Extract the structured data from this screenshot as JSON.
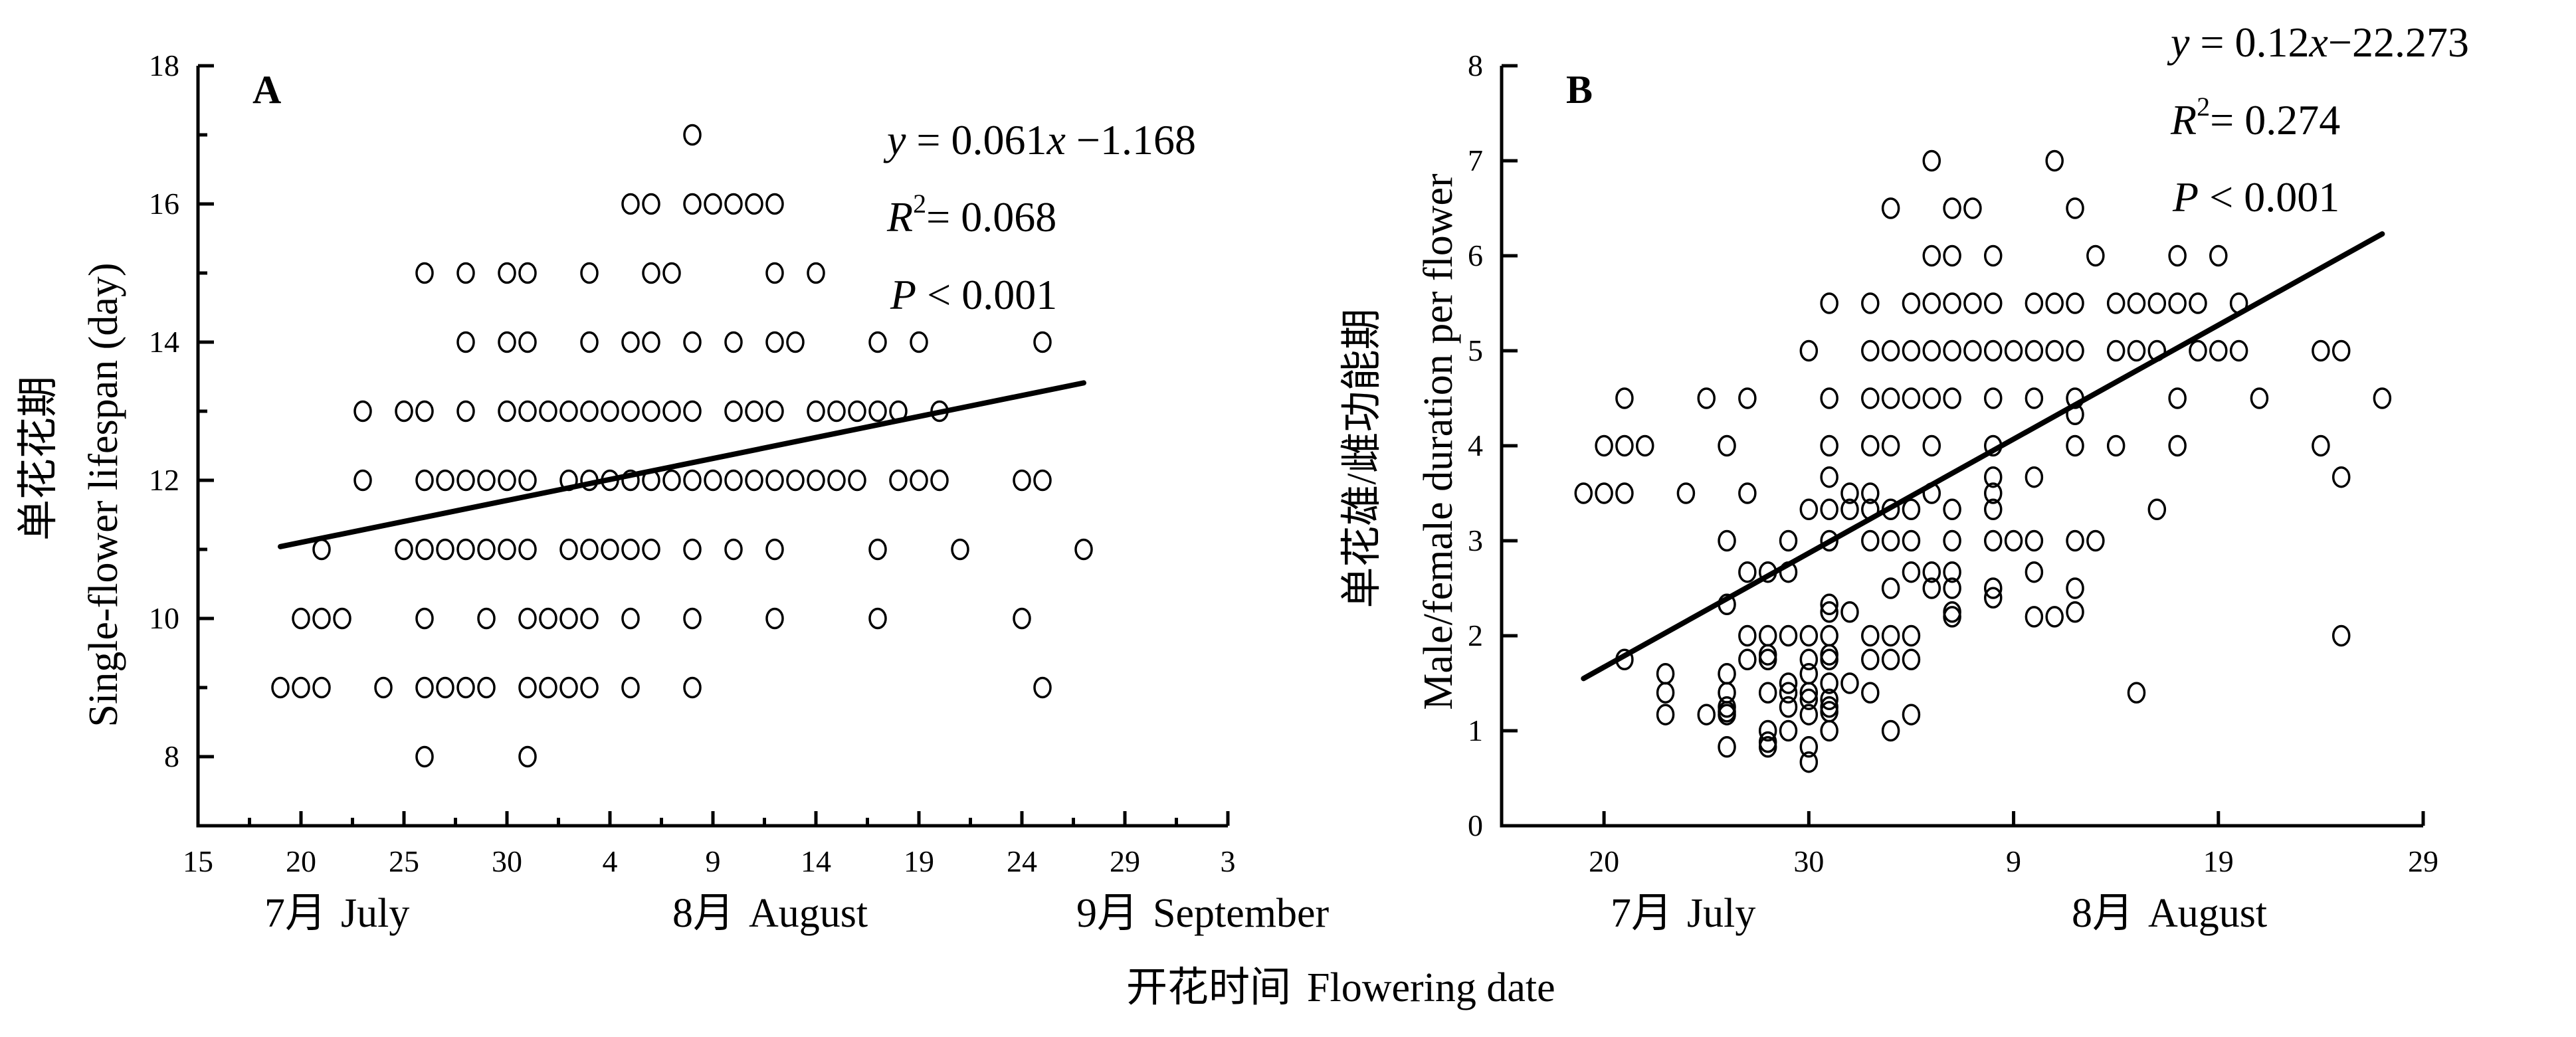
{
  "chart_data": [
    {
      "id": "A",
      "type": "scatter",
      "panel_label": "A",
      "ylabel_cn": "单花花期",
      "ylabel_en": "Single-flower lifespan (day)",
      "xlabel": "开花时间  Flowering date",
      "x_unit_note": "day counted from 1 July (32 = 1 Aug, 63 = 1 Sep)",
      "xlim": [
        15,
        65
      ],
      "ylim": [
        7,
        18
      ],
      "x_ticks": [
        {
          "value": 15,
          "label": "15"
        },
        {
          "value": 20,
          "label": "20"
        },
        {
          "value": 25,
          "label": "25"
        },
        {
          "value": 30,
          "label": "30"
        },
        {
          "value": 35,
          "label": "4"
        },
        {
          "value": 40,
          "label": "9"
        },
        {
          "value": 45,
          "label": "14"
        },
        {
          "value": 50,
          "label": "19"
        },
        {
          "value": 55,
          "label": "24"
        },
        {
          "value": 60,
          "label": "29"
        },
        {
          "value": 65,
          "label": "3"
        }
      ],
      "x_minor_step": 2.5,
      "y_ticks": [
        {
          "value": 8,
          "label": "8"
        },
        {
          "value": 10,
          "label": "10"
        },
        {
          "value": 12,
          "label": "12"
        },
        {
          "value": 14,
          "label": "14"
        },
        {
          "value": 16,
          "label": "16"
        },
        {
          "value": 18,
          "label": "18"
        }
      ],
      "y_minor_step": 1,
      "months": [
        {
          "cn": "7月",
          "en": "July"
        },
        {
          "cn": "8月",
          "en": "August"
        },
        {
          "cn": "9月",
          "en": "September"
        }
      ],
      "stats": {
        "equation_y": "y",
        "equation_mid": " = 0.061",
        "equation_x": "x",
        "equation_tail": " −1.168",
        "r2_label": "R",
        "r2_sup": "2",
        "r2_value": "= 0.068",
        "p_label": "P",
        "p_value": " < 0.001"
      },
      "fit_line": {
        "x": [
          19,
          58
        ],
        "y": [
          11.04,
          13.41
        ]
      },
      "rows": [
        {
          "y": 17,
          "x": [
            39
          ]
        },
        {
          "y": 16,
          "x": [
            36,
            37,
            39,
            40,
            41,
            42,
            43
          ]
        },
        {
          "y": 15,
          "x": [
            26,
            28,
            30,
            31,
            34,
            37,
            38,
            43,
            45
          ]
        },
        {
          "y": 14,
          "x": [
            28,
            30,
            31,
            34,
            36,
            37,
            39,
            41,
            43,
            44,
            48,
            50,
            56
          ]
        },
        {
          "y": 13,
          "x": [
            23,
            25,
            26,
            28,
            30,
            31,
            32,
            33,
            34,
            35,
            36,
            37,
            38,
            39,
            41,
            42,
            43,
            45,
            46,
            47,
            48,
            49,
            51
          ]
        },
        {
          "y": 12,
          "x": [
            23,
            26,
            27,
            28,
            29,
            30,
            31,
            33,
            34,
            35,
            36,
            37,
            38,
            39,
            40,
            41,
            42,
            43,
            44,
            45,
            46,
            47,
            49,
            50,
            51,
            55,
            56
          ]
        },
        {
          "y": 11,
          "x": [
            21,
            25,
            26,
            27,
            28,
            29,
            30,
            31,
            33,
            34,
            35,
            36,
            37,
            39,
            41,
            43,
            48,
            52,
            58
          ]
        },
        {
          "y": 10,
          "x": [
            20,
            21,
            22,
            26,
            29,
            31,
            32,
            33,
            34,
            36,
            39,
            43,
            48,
            55
          ]
        },
        {
          "y": 9,
          "x": [
            19,
            20,
            21,
            24,
            26,
            27,
            28,
            29,
            31,
            32,
            33,
            34,
            36,
            39,
            56
          ]
        },
        {
          "y": 8,
          "x": [
            26,
            31
          ]
        }
      ]
    },
    {
      "id": "B",
      "type": "scatter",
      "panel_label": "B",
      "ylabel_cn": "单花雄/雌功能期",
      "ylabel_en": "Male/female duration per flower",
      "xlabel": "开花时间  Flowering date",
      "x_unit_note": "day counted from 1 July (32 = 1 Aug)",
      "xlim": [
        15,
        60
      ],
      "ylim": [
        0,
        8
      ],
      "x_ticks": [
        {
          "value": 20,
          "label": "20"
        },
        {
          "value": 30,
          "label": "30"
        },
        {
          "value": 40,
          "label": "9"
        },
        {
          "value": 50,
          "label": "19"
        },
        {
          "value": 60,
          "label": "29"
        }
      ],
      "y_ticks": [
        {
          "value": 0,
          "label": "0"
        },
        {
          "value": 1,
          "label": "1"
        },
        {
          "value": 2,
          "label": "2"
        },
        {
          "value": 3,
          "label": "3"
        },
        {
          "value": 4,
          "label": "4"
        },
        {
          "value": 5,
          "label": "5"
        },
        {
          "value": 6,
          "label": "6"
        },
        {
          "value": 7,
          "label": "7"
        },
        {
          "value": 8,
          "label": "8"
        }
      ],
      "months": [
        {
          "cn": "7月",
          "en": "July"
        },
        {
          "cn": "8月",
          "en": "August"
        }
      ],
      "stats": {
        "equation_y": "y",
        "equation_mid": " = 0.12",
        "equation_x": "x",
        "equation_tail": "−22.273",
        "r2_label": "R",
        "r2_sup": "2",
        "r2_value": "= 0.274",
        "p_label": "P",
        "p_value": " < 0.001"
      },
      "fit_line": {
        "x": [
          19,
          58
        ],
        "y": [
          1.55,
          6.23
        ]
      },
      "rows": [
        {
          "y": 7,
          "x": [
            36,
            42
          ]
        },
        {
          "y": 6.5,
          "x": [
            34,
            37,
            38,
            43
          ]
        },
        {
          "y": 6,
          "x": [
            36,
            37,
            39,
            44,
            48,
            50
          ]
        },
        {
          "y": 5.5,
          "x": [
            31,
            33,
            35,
            36,
            37,
            38,
            39,
            41,
            42,
            43,
            45,
            46,
            47,
            48,
            49,
            51
          ]
        },
        {
          "y": 5,
          "x": [
            30,
            33,
            34,
            35,
            36,
            37,
            38,
            39,
            40,
            41,
            42,
            43,
            45,
            46,
            47,
            49,
            50,
            51,
            55,
            56
          ]
        },
        {
          "y": 4.5,
          "x": [
            21,
            25,
            27,
            31,
            33,
            34,
            35,
            36,
            37,
            39,
            41,
            43,
            48,
            52,
            58
          ]
        },
        {
          "y": 4.33,
          "x": [
            43
          ]
        },
        {
          "y": 4,
          "x": [
            20,
            21,
            22,
            26,
            31,
            33,
            34,
            36,
            39,
            43,
            45,
            48,
            55
          ]
        },
        {
          "y": 3.67,
          "x": [
            31,
            39,
            41,
            56
          ]
        },
        {
          "y": 3.5,
          "x": [
            19,
            20,
            21,
            24,
            27,
            32,
            33,
            36,
            39
          ]
        },
        {
          "y": 3.33,
          "x": [
            30,
            31,
            32,
            33,
            34,
            35,
            37,
            39,
            47
          ]
        },
        {
          "y": 3,
          "x": [
            26,
            29,
            31,
            33,
            34,
            35,
            37,
            39,
            40,
            41,
            43,
            44
          ]
        },
        {
          "y": 2.67,
          "x": [
            27,
            28,
            29,
            35,
            36,
            37,
            41
          ]
        },
        {
          "y": 2.5,
          "x": [
            34,
            36,
            37,
            39,
            43
          ]
        },
        {
          "y": 2.4,
          "x": [
            39
          ]
        },
        {
          "y": 2.33,
          "x": [
            26,
            31
          ]
        },
        {
          "y": 2.25,
          "x": [
            31,
            32,
            37,
            43
          ]
        },
        {
          "y": 2.2,
          "x": [
            37,
            41,
            42
          ]
        },
        {
          "y": 2,
          "x": [
            27,
            28,
            29,
            30,
            31,
            33,
            34,
            35,
            56
          ]
        },
        {
          "y": 1.8,
          "x": [
            28,
            31
          ]
        },
        {
          "y": 1.75,
          "x": [
            21,
            27,
            28,
            30,
            31,
            33,
            34,
            35
          ]
        },
        {
          "y": 1.6,
          "x": [
            23,
            26,
            30
          ]
        },
        {
          "y": 1.5,
          "x": [
            29,
            31,
            32
          ]
        },
        {
          "y": 1.4,
          "x": [
            23,
            26,
            28,
            29,
            30,
            33,
            46
          ]
        },
        {
          "y": 1.33,
          "x": [
            30,
            31
          ]
        },
        {
          "y": 1.25,
          "x": [
            26,
            29,
            31
          ]
        },
        {
          "y": 1.2,
          "x": [
            26,
            31
          ]
        },
        {
          "y": 1.17,
          "x": [
            23,
            25,
            26,
            30,
            35
          ]
        },
        {
          "y": 1,
          "x": [
            28,
            29,
            31,
            34
          ]
        },
        {
          "y": 0.88,
          "x": [
            28
          ]
        },
        {
          "y": 0.83,
          "x": [
            26,
            28,
            30
          ]
        },
        {
          "y": 0.67,
          "x": [
            30
          ]
        }
      ]
    }
  ],
  "shared": {
    "xlabel_cn": "开花时间",
    "xlabel_en": "Flowering date"
  }
}
